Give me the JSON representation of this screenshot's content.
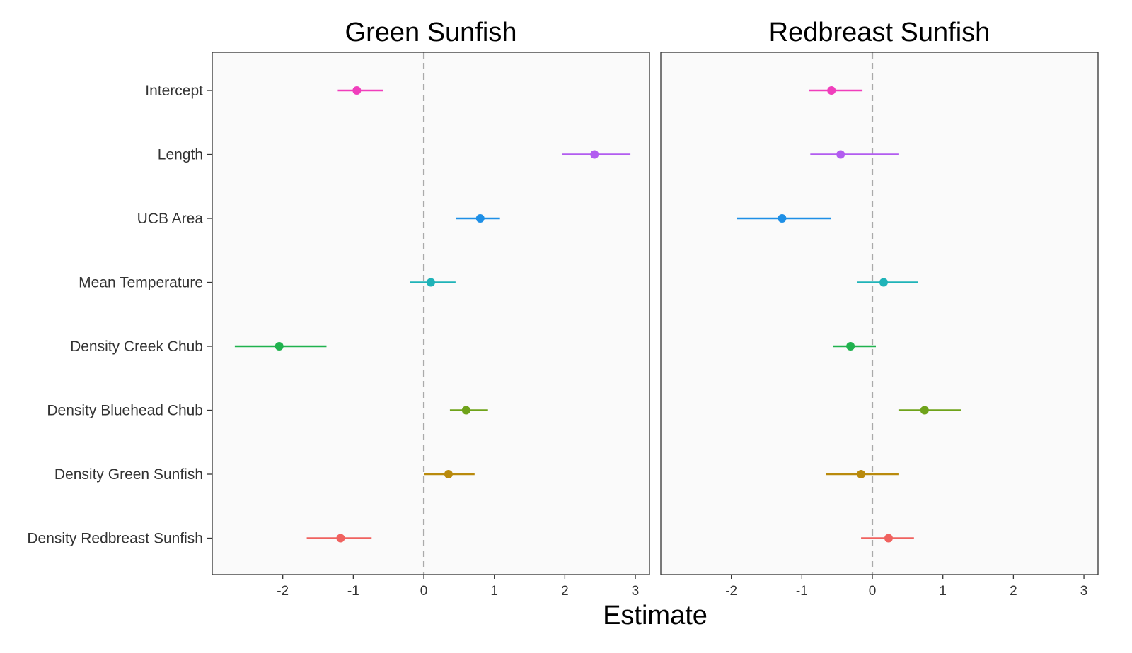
{
  "chart_data": {
    "type": "scatter",
    "xlabel": "Estimate",
    "ylabel": "",
    "xlim": [
      -3,
      3.2
    ],
    "x_ticks": [
      -2,
      -1,
      0,
      1,
      2,
      3
    ],
    "x_tick_labels": [
      "-2",
      "-1",
      "0",
      "1",
      "2",
      "3"
    ],
    "reference_line": 0,
    "grid": false,
    "legend": "none",
    "categories": [
      "Intercept",
      "Length",
      "UCB Area",
      "Mean Temperature",
      "Density Creek Chub",
      "Density Bluehead Chub",
      "Density Green Sunfish",
      "Density Redbreast Sunfish"
    ],
    "colors": [
      "#F03EBC",
      "#B25CF0",
      "#1E8FE6",
      "#1FB3B8",
      "#20B24E",
      "#6FA31A",
      "#B98A0C",
      "#F0625F"
    ],
    "panels": [
      {
        "title": "Green Sunfish",
        "estimates": [
          -0.95,
          2.42,
          0.8,
          0.1,
          -2.05,
          0.6,
          0.35,
          -1.18
        ],
        "lower": [
          -1.22,
          1.96,
          0.46,
          -0.2,
          -2.68,
          0.37,
          0.0,
          -1.66
        ],
        "upper": [
          -0.58,
          2.93,
          1.08,
          0.45,
          -1.38,
          0.91,
          0.72,
          -0.74
        ]
      },
      {
        "title": "Redbreast Sunfish",
        "estimates": [
          -0.58,
          -0.45,
          -1.28,
          0.16,
          -0.31,
          0.74,
          -0.16,
          0.23
        ],
        "lower": [
          -0.9,
          -0.88,
          -1.92,
          -0.22,
          -0.56,
          0.37,
          -0.66,
          -0.16
        ],
        "upper": [
          -0.14,
          0.37,
          -0.59,
          0.65,
          0.05,
          1.26,
          0.37,
          0.59
        ]
      }
    ]
  }
}
